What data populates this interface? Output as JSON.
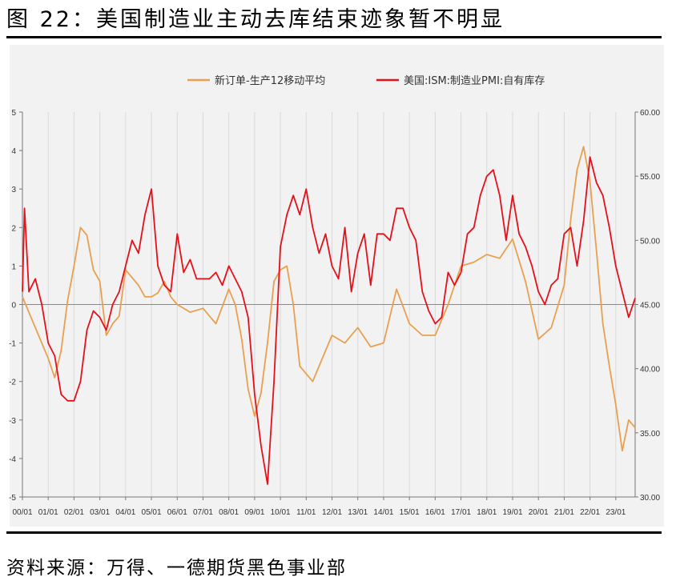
{
  "figure_title": "图 22：美国制造业主动去库结束迹象暂不明显",
  "source_note": "资料来源：万得、一德期货黑色事业部",
  "colors": {
    "series_0": "#e8a050",
    "series_1": "#e5101a",
    "panel_bg": "#f2f2f2",
    "grid": "#d9d9d9"
  },
  "chart_data": {
    "type": "line",
    "title": "",
    "legend_position": "top",
    "grid": true,
    "x_ticks": [
      "00/01",
      "01/01",
      "02/01",
      "03/01",
      "04/01",
      "05/01",
      "06/01",
      "07/01",
      "08/01",
      "09/01",
      "10/01",
      "11/01",
      "12/01",
      "13/01",
      "14/01",
      "15/01",
      "16/01",
      "17/01",
      "18/01",
      "19/01",
      "20/01",
      "21/01",
      "22/01",
      "23/01"
    ],
    "x_range": [
      2000.0,
      2023.75
    ],
    "y_left": {
      "range": [
        -5,
        5
      ],
      "ticks": [
        -5,
        -4,
        -3,
        -2,
        -1,
        0,
        1,
        2,
        3,
        4,
        5
      ]
    },
    "y_right": {
      "range": [
        30,
        60
      ],
      "ticks": [
        "30.00",
        "35.00",
        "40.00",
        "45.00",
        "50.00",
        "55.00",
        "60.00"
      ]
    },
    "series": [
      {
        "name": "新订单-生产12移动平均",
        "axis": "left",
        "x": [
          2000.0,
          2000.5,
          2001.0,
          2001.25,
          2001.5,
          2001.75,
          2002.0,
          2002.25,
          2002.5,
          2002.75,
          2003.0,
          2003.25,
          2003.5,
          2003.75,
          2004.0,
          2004.25,
          2004.5,
          2004.75,
          2005.0,
          2005.25,
          2005.5,
          2005.75,
          2006.0,
          2006.5,
          2007.0,
          2007.5,
          2008.0,
          2008.25,
          2008.5,
          2008.75,
          2009.0,
          2009.25,
          2009.5,
          2009.75,
          2010.0,
          2010.25,
          2010.5,
          2010.75,
          2011.0,
          2011.25,
          2011.5,
          2011.75,
          2012.0,
          2012.5,
          2013.0,
          2013.5,
          2014.0,
          2014.5,
          2015.0,
          2015.5,
          2016.0,
          2016.5,
          2017.0,
          2017.5,
          2018.0,
          2018.5,
          2019.0,
          2019.5,
          2020.0,
          2020.5,
          2021.0,
          2021.25,
          2021.5,
          2021.75,
          2022.0,
          2022.25,
          2022.5,
          2022.75,
          2023.0,
          2023.25,
          2023.5,
          2023.75
        ],
        "values": [
          0.2,
          -0.6,
          -1.4,
          -1.9,
          -1.2,
          0.1,
          1.0,
          2.0,
          1.8,
          0.9,
          0.6,
          -0.8,
          -0.5,
          -0.3,
          0.9,
          0.7,
          0.5,
          0.2,
          0.2,
          0.3,
          0.6,
          0.2,
          0.0,
          -0.2,
          -0.1,
          -0.5,
          0.4,
          0.0,
          -0.9,
          -2.2,
          -2.9,
          -2.3,
          -1.0,
          0.6,
          0.9,
          1.0,
          0.0,
          -1.6,
          -1.8,
          -2.0,
          -1.6,
          -1.2,
          -0.8,
          -1.0,
          -0.6,
          -1.1,
          -1.0,
          0.4,
          -0.5,
          -0.8,
          -0.8,
          0.0,
          1.0,
          1.1,
          1.3,
          1.2,
          1.7,
          0.6,
          -0.9,
          -0.6,
          0.5,
          2.2,
          3.5,
          4.1,
          3.2,
          1.4,
          -0.5,
          -1.6,
          -2.6,
          -3.8,
          -3.0,
          -3.2
        ]
      },
      {
        "name": "美国:ISM:制造业PMI:自有库存",
        "axis": "right",
        "x": [
          2000.0,
          2000.08,
          2000.25,
          2000.5,
          2000.75,
          2001.0,
          2001.25,
          2001.5,
          2001.75,
          2002.0,
          2002.25,
          2002.5,
          2002.75,
          2003.0,
          2003.25,
          2003.5,
          2003.75,
          2004.0,
          2004.25,
          2004.5,
          2004.75,
          2005.0,
          2005.25,
          2005.5,
          2005.75,
          2006.0,
          2006.25,
          2006.5,
          2006.75,
          2007.0,
          2007.25,
          2007.5,
          2007.75,
          2008.0,
          2008.25,
          2008.5,
          2008.75,
          2009.0,
          2009.25,
          2009.5,
          2009.75,
          2010.0,
          2010.25,
          2010.5,
          2010.75,
          2011.0,
          2011.25,
          2011.5,
          2011.75,
          2012.0,
          2012.25,
          2012.5,
          2012.75,
          2013.0,
          2013.25,
          2013.5,
          2013.75,
          2014.0,
          2014.25,
          2014.5,
          2014.75,
          2015.0,
          2015.25,
          2015.5,
          2015.75,
          2016.0,
          2016.25,
          2016.5,
          2016.75,
          2017.0,
          2017.25,
          2017.5,
          2017.75,
          2018.0,
          2018.25,
          2018.5,
          2018.75,
          2019.0,
          2019.25,
          2019.5,
          2019.75,
          2020.0,
          2020.25,
          2020.5,
          2020.75,
          2021.0,
          2021.25,
          2021.5,
          2021.75,
          2022.0,
          2022.25,
          2022.5,
          2022.75,
          2023.0,
          2023.25,
          2023.5,
          2023.75
        ],
        "values": [
          46.0,
          52.5,
          46.0,
          47.0,
          45.0,
          42.0,
          41.0,
          38.0,
          37.5,
          37.5,
          39.0,
          43.0,
          44.5,
          44.0,
          43.0,
          45.0,
          46.0,
          48.0,
          50.0,
          49.0,
          52.0,
          54.0,
          48.0,
          46.5,
          46.0,
          50.5,
          47.5,
          48.5,
          47.0,
          47.0,
          47.0,
          47.5,
          46.5,
          48.0,
          47.0,
          46.0,
          44.0,
          38.0,
          34.0,
          31.0,
          39.0,
          49.5,
          52.0,
          53.5,
          52.0,
          54.0,
          51.0,
          49.0,
          50.5,
          48.0,
          47.0,
          51.0,
          46.0,
          49.0,
          50.5,
          46.5,
          50.5,
          50.5,
          50.0,
          52.5,
          52.5,
          51.0,
          50.0,
          46.0,
          44.5,
          43.5,
          44.0,
          47.5,
          46.5,
          47.5,
          50.5,
          51.0,
          53.5,
          55.0,
          55.5,
          53.5,
          50.0,
          53.5,
          50.5,
          49.5,
          48.0,
          46.0,
          45.0,
          46.5,
          47.0,
          50.5,
          51.0,
          48.0,
          51.5,
          56.5,
          54.5,
          53.5,
          51.0,
          48.0,
          46.0,
          44.0,
          45.5
        ]
      }
    ]
  }
}
